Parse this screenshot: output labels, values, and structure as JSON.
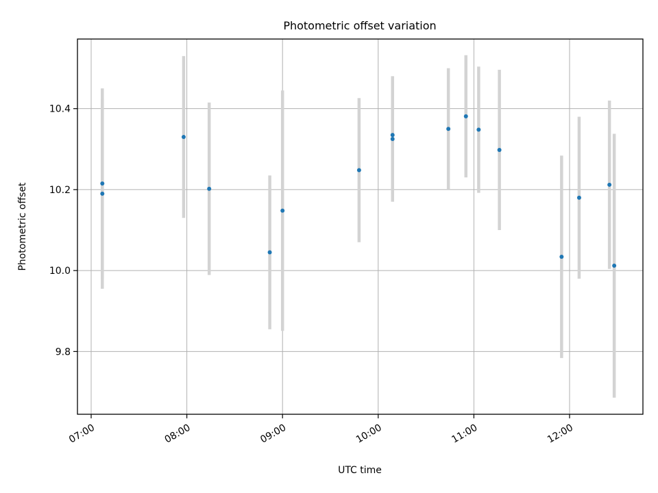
{
  "chart_data": {
    "type": "scatter",
    "title": "Photometric offset variation",
    "xlabel": "UTC time",
    "ylabel": "Photometric offset",
    "x_is_time": true,
    "xlim": [
      "07:00",
      "12:46"
    ],
    "ylim": [
      9.645,
      10.572
    ],
    "x_ticks": [
      "07:00",
      "08:00",
      "09:00",
      "10:00",
      "11:00",
      "12:00"
    ],
    "y_ticks": [
      9.8,
      10.0,
      10.2,
      10.4
    ],
    "grid": true,
    "colors": {
      "point": "#1f77b4",
      "errorbar": "#d3d3d3",
      "grid": "#b0b0b0"
    },
    "points": [
      {
        "time": "07:07",
        "y": 10.215,
        "yerr": 0.235
      },
      {
        "time": "07:07",
        "y": 10.19,
        "yerr": 0.235
      },
      {
        "time": "07:58",
        "y": 10.33,
        "yerr": 0.2
      },
      {
        "time": "08:14",
        "y": 10.202,
        "yerr": 0.213
      },
      {
        "time": "08:52",
        "y": 10.045,
        "yerr": 0.19
      },
      {
        "time": "09:00",
        "y": 10.148,
        "yerr": 0.297
      },
      {
        "time": "09:48",
        "y": 10.248,
        "yerr": 0.178
      },
      {
        "time": "10:09",
        "y": 10.335,
        "yerr": 0.145
      },
      {
        "time": "10:09",
        "y": 10.325,
        "yerr": 0.155
      },
      {
        "time": "10:44",
        "y": 10.35,
        "yerr": 0.15
      },
      {
        "time": "10:55",
        "y": 10.381,
        "yerr": 0.151
      },
      {
        "time": "11:03",
        "y": 10.348,
        "yerr": 0.156
      },
      {
        "time": "11:16",
        "y": 10.298,
        "yerr": 0.198
      },
      {
        "time": "11:55",
        "y": 10.034,
        "yerr": 0.25
      },
      {
        "time": "12:06",
        "y": 10.18,
        "yerr": 0.2
      },
      {
        "time": "12:25",
        "y": 10.212,
        "yerr": 0.208
      },
      {
        "time": "12:28",
        "y": 10.012,
        "yerr": 0.326
      }
    ]
  }
}
